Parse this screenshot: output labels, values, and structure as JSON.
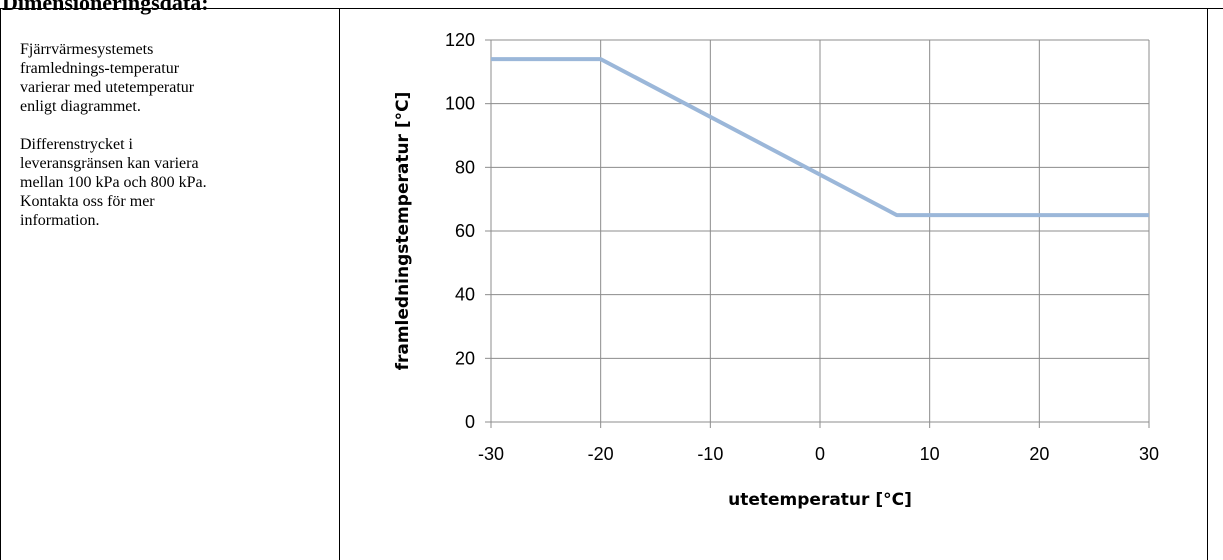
{
  "section": {
    "title": "Dimensioneringsdata:"
  },
  "note": {
    "paragraphs": [
      "Fjärrvärmesystemets\nframlednings-temperatur\nvarierar med utetemperatur\nenligt diagrammet.",
      "Differenstrycket i\nleveransgränsen kan variera\nmellan 100 kPa och 800 kPa.\nKontakta oss för mer\ninformation."
    ]
  },
  "chart_data": {
    "type": "line",
    "title": "",
    "xlabel": "utetemperatur [°C]",
    "ylabel": "framledningstemperatur [°C]",
    "xlim": [
      -30,
      30
    ],
    "ylim": [
      0,
      120
    ],
    "xticks": [
      -30,
      -20,
      -10,
      0,
      10,
      20,
      30
    ],
    "yticks": [
      0,
      20,
      40,
      60,
      80,
      100,
      120
    ],
    "grid": true,
    "legend": "none",
    "series": [
      {
        "color": "#9bb7d9",
        "x": [
          -30,
          -20,
          7,
          30
        ],
        "y": [
          114,
          114,
          65,
          65
        ]
      }
    ]
  }
}
